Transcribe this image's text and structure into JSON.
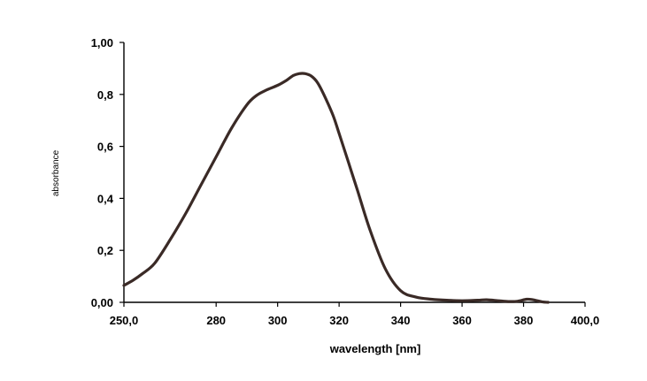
{
  "chart_data": {
    "type": "line",
    "title": "",
    "xlabel": "wavelength [nm]",
    "ylabel": "absorbance",
    "xlim": [
      250,
      400
    ],
    "ylim": [
      0,
      1
    ],
    "x_ticks": [
      250,
      280,
      300,
      320,
      340,
      360,
      380,
      400
    ],
    "x_tick_labels": [
      "250,0",
      "280",
      "300",
      "320",
      "340",
      "360",
      "380",
      "400,0"
    ],
    "y_ticks": [
      0,
      0.2,
      0.4,
      0.6,
      0.8,
      1.0
    ],
    "y_tick_labels": [
      "0,00",
      "0,2",
      "0,4",
      "0,6",
      "0,8",
      "1,00"
    ],
    "grid": false,
    "series": [
      {
        "color": "#3a2a26",
        "x": [
          250,
          253,
          256,
          260,
          265,
          270,
          275,
          280,
          285,
          290,
          293,
          296,
          300,
          303,
          305,
          307,
          309,
          311,
          313,
          315,
          318,
          320,
          323,
          326,
          330,
          335,
          340,
          345,
          350,
          355,
          360,
          365,
          368,
          372,
          375,
          378,
          381,
          383,
          386,
          388
        ],
        "y": [
          0.065,
          0.085,
          0.11,
          0.15,
          0.24,
          0.34,
          0.45,
          0.56,
          0.67,
          0.76,
          0.795,
          0.815,
          0.835,
          0.855,
          0.872,
          0.88,
          0.88,
          0.87,
          0.845,
          0.8,
          0.72,
          0.65,
          0.54,
          0.43,
          0.28,
          0.13,
          0.045,
          0.02,
          0.012,
          0.008,
          0.006,
          0.008,
          0.01,
          0.006,
          0.003,
          0.004,
          0.012,
          0.01,
          0.002,
          0.0
        ]
      }
    ]
  }
}
